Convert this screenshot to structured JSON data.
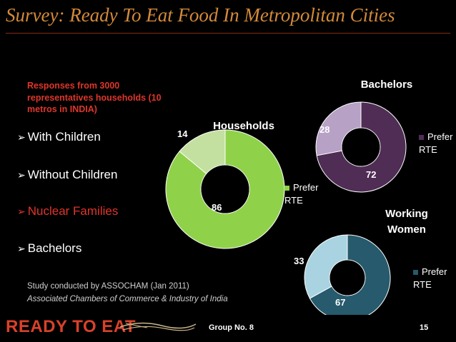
{
  "slide": {
    "title": "Survey: Ready To Eat Food In Metropolitan Cities",
    "responses_note": "Responses from 3000 representatives households (10 metros in INDIA)",
    "bullets": [
      {
        "text": "With Children",
        "highlight": false
      },
      {
        "text": "Without Children",
        "highlight": false
      },
      {
        "text": "Nuclear Families",
        "highlight": true
      },
      {
        "text": "Bachelors",
        "highlight": false
      }
    ],
    "study_line1": "Study conducted by ASSOCHAM (Jan 2011)",
    "study_line2": "Associated Chambers of Commerce & Industry of India",
    "logo_text": "READY TO EAT",
    "group_label": "Group No. 8",
    "page_number": "15"
  },
  "colors": {
    "title": "#d48a3a",
    "accent_red": "#e0352a",
    "households_main": "#8fd24a",
    "households_other": "#c3e0a0",
    "bachelors_main": "#4f2d55",
    "bachelors_other": "#b7a1c5",
    "women_main": "#265a6c",
    "women_other": "#a9d3e0"
  },
  "chart_data": [
    {
      "type": "pie",
      "variant": "donut",
      "title": "Households",
      "slices": [
        {
          "label": "Prefer RTE",
          "value": 86,
          "color": "#8fd24a"
        },
        {
          "label": "",
          "value": 14,
          "color": "#c3e0a0"
        }
      ],
      "legend": [
        "Prefer RTE"
      ]
    },
    {
      "type": "pie",
      "variant": "donut",
      "title": "Bachelors",
      "slices": [
        {
          "label": "Prefer RTE",
          "value": 72,
          "color": "#4f2d55"
        },
        {
          "label": "",
          "value": 28,
          "color": "#b7a1c5"
        }
      ],
      "legend": [
        "Prefer RTE"
      ]
    },
    {
      "type": "pie",
      "variant": "donut",
      "title": "Working Women",
      "slices": [
        {
          "label": "Prefer RTE",
          "value": 67,
          "color": "#265a6c"
        },
        {
          "label": "",
          "value": 33,
          "color": "#a9d3e0"
        }
      ],
      "legend": [
        "Prefer RTE"
      ]
    }
  ]
}
